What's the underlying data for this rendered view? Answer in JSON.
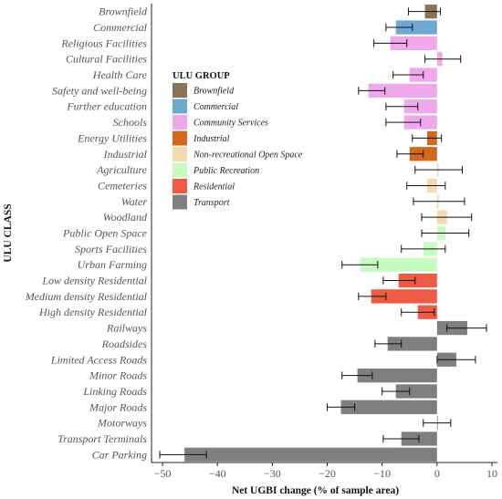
{
  "chart_data": {
    "type": "bar",
    "orientation": "horizontal",
    "xlabel": "Net UGBI change (% of sample area)",
    "ylabel": "ULU CLASS",
    "xlim": [
      -52,
      11
    ],
    "xticks": [
      -50,
      -40,
      -30,
      -20,
      -10,
      0,
      10
    ],
    "xtick_labels": [
      "−50",
      "−40",
      "−30",
      "−20",
      "−10",
      "0",
      "10"
    ],
    "grid": false,
    "legend_position": "top-left",
    "legend": {
      "title": "ULU GROUP",
      "entries": [
        {
          "name": "Brownfield",
          "color": "#8c7257"
        },
        {
          "name": "Commercial",
          "color": "#6fa8d3"
        },
        {
          "name": "Community Services",
          "color": "#f0a8ec"
        },
        {
          "name": "Industrial",
          "color": "#d2691a"
        },
        {
          "name": "Non-recreational Open Space",
          "color": "#f6d9ae"
        },
        {
          "name": "Public Recreation",
          "color": "#c8fbc2"
        },
        {
          "name": "Residential",
          "color": "#ef5a44"
        },
        {
          "name": "Transport",
          "color": "#7f7f7f"
        }
      ]
    },
    "bars": [
      {
        "category": "Brownfield",
        "group": "Brownfield",
        "value": -2.2,
        "err_low": -5.2,
        "err_high": 0.6
      },
      {
        "category": "Commercial",
        "group": "Commercial",
        "value": -7.5,
        "err_low": -9.3,
        "err_high": -4.5
      },
      {
        "category": "Religious Facilities",
        "group": "Community Services",
        "value": -8.5,
        "err_low": -11.5,
        "err_high": -5.5
      },
      {
        "category": "Cultural Facilities",
        "group": "Community Services",
        "value": 1.0,
        "err_low": -2.2,
        "err_high": 4.3
      },
      {
        "category": "Health Care",
        "group": "Community Services",
        "value": -5.0,
        "err_low": -8.0,
        "err_high": -2.5
      },
      {
        "category": "Safety and well-being",
        "group": "Community Services",
        "value": -12.5,
        "err_low": -14.3,
        "err_high": -9.5
      },
      {
        "category": "Further education",
        "group": "Community Services",
        "value": -6.0,
        "err_low": -9.3,
        "err_high": -3.5
      },
      {
        "category": "Schools",
        "group": "Community Services",
        "value": -6.0,
        "err_low": -9.3,
        "err_high": -3.0
      },
      {
        "category": "Energy Utilities",
        "group": "Industrial",
        "value": -1.8,
        "err_low": -4.5,
        "err_high": 0.8
      },
      {
        "category": "Industrial",
        "group": "Industrial",
        "value": -5.0,
        "err_low": -7.3,
        "err_high": -2.5
      },
      {
        "category": "Agriculture",
        "group": "Non-recreational Open Space",
        "value": 0.3,
        "err_low": -4.0,
        "err_high": 4.6
      },
      {
        "category": "Cemeteries",
        "group": "Non-recreational Open Space",
        "value": -1.8,
        "err_low": -5.5,
        "err_high": 1.5
      },
      {
        "category": "Water",
        "group": "Non-recreational Open Space",
        "value": 0.3,
        "err_low": -4.3,
        "err_high": 5.0
      },
      {
        "category": "Woodland",
        "group": "Non-recreational Open Space",
        "value": 1.8,
        "err_low": -2.8,
        "err_high": 6.3
      },
      {
        "category": "Public Open Space",
        "group": "Public Recreation",
        "value": 1.5,
        "err_low": -2.8,
        "err_high": 5.8
      },
      {
        "category": "Sports Facilities",
        "group": "Public Recreation",
        "value": -2.5,
        "err_low": -6.5,
        "err_high": 1.5
      },
      {
        "category": "Urban Farming",
        "group": "Public Recreation",
        "value": -14.0,
        "err_low": -17.3,
        "err_high": -10.8
      },
      {
        "category": "Low density Residential",
        "group": "Residential",
        "value": -7.0,
        "err_low": -9.8,
        "err_high": -4.0
      },
      {
        "category": "Medium density Residential",
        "group": "Residential",
        "value": -12.0,
        "err_low": -14.3,
        "err_high": -9.3
      },
      {
        "category": "High density Residential",
        "group": "Residential",
        "value": -3.5,
        "err_low": -6.5,
        "err_high": -0.5
      },
      {
        "category": "Railways",
        "group": "Transport",
        "value": 5.5,
        "err_low": 1.8,
        "err_high": 9.0
      },
      {
        "category": "Roadsides",
        "group": "Transport",
        "value": -9.0,
        "err_low": -11.3,
        "err_high": -6.5
      },
      {
        "category": "Limited Access Roads",
        "group": "Transport",
        "value": 3.5,
        "err_low": 0.0,
        "err_high": 7.0
      },
      {
        "category": "Minor Roads",
        "group": "Transport",
        "value": -14.5,
        "err_low": -17.3,
        "err_high": -11.8
      },
      {
        "category": "Linking Roads",
        "group": "Transport",
        "value": -7.5,
        "err_low": -10.0,
        "err_high": -5.0
      },
      {
        "category": "Major Roads",
        "group": "Transport",
        "value": -17.5,
        "err_low": -20.0,
        "err_high": -15.0
      },
      {
        "category": "Motorways",
        "group": "Transport",
        "value": 0.0,
        "err_low": -2.5,
        "err_high": 2.5
      },
      {
        "category": "Transport Terminals",
        "group": "Transport",
        "value": -6.5,
        "err_low": -9.8,
        "err_high": -3.3
      },
      {
        "category": "Car Parking",
        "group": "Transport",
        "value": -46.0,
        "err_low": -50.5,
        "err_high": -42.0
      }
    ]
  }
}
